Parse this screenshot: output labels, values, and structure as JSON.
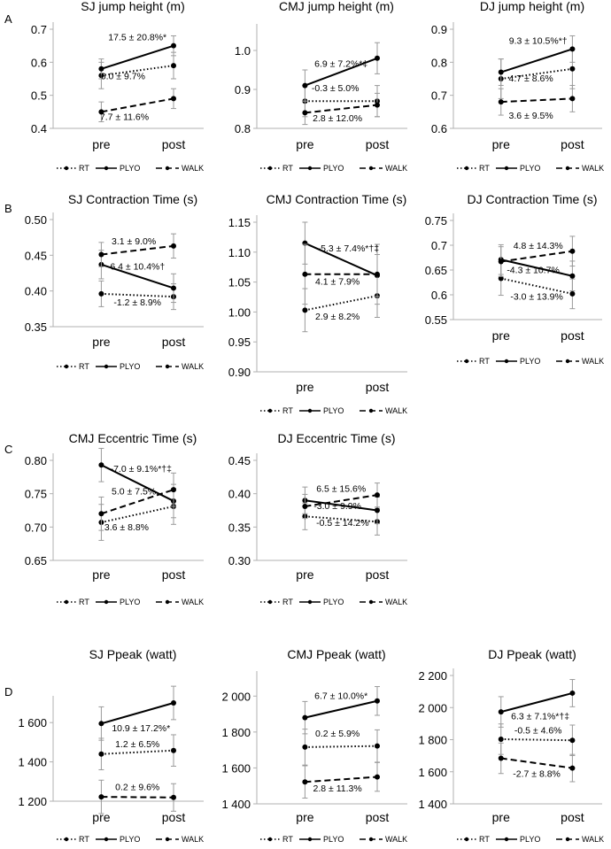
{
  "panel_labels": [
    "A",
    "B",
    "C",
    "D"
  ],
  "legend": [
    {
      "name": "RT",
      "style": "dotted"
    },
    {
      "name": "PLYO",
      "style": "solid"
    },
    {
      "name": "WALK",
      "style": "dashed"
    }
  ],
  "chart_data": [
    {
      "id": "sj-height",
      "type": "line",
      "title": "SJ jump height (m)",
      "categories": [
        "pre",
        "post"
      ],
      "ylim": [
        0.4,
        0.7
      ],
      "yticks": [
        0.4,
        0.5,
        0.6,
        0.7
      ],
      "tick_labels": [
        "0.4",
        "0.5",
        "0.6",
        "0.7"
      ],
      "series": [
        {
          "name": "RT",
          "values": [
            0.56,
            0.59
          ],
          "err": [
            0.04,
            0.04
          ]
        },
        {
          "name": "PLYO",
          "values": [
            0.58,
            0.65
          ],
          "err": [
            0.03,
            0.03
          ]
        },
        {
          "name": "WALK",
          "values": [
            0.45,
            0.49
          ],
          "err": [
            0.03,
            0.03
          ]
        }
      ],
      "annotations": [
        {
          "text": "17.5 ± 20.8%*",
          "x": 0.5,
          "y": 0.666,
          "anchor": "middle"
        },
        {
          "text": "6.0 ± 9.7%",
          "x": 0.3,
          "y": 0.549,
          "anchor": "middle"
        },
        {
          "text": "7.7 ± 11.6%",
          "x": 0.32,
          "y": 0.425,
          "anchor": "middle"
        }
      ]
    },
    {
      "id": "cmj-height",
      "type": "line",
      "title": "CMJ jump height (m)",
      "categories": [
        "pre",
        "post"
      ],
      "ylim": [
        0.8,
        1.05
      ],
      "yticks": [
        0.8,
        0.9,
        1.0
      ],
      "tick_labels": [
        "0.8",
        "0.9",
        "1.0"
      ],
      "series": [
        {
          "name": "RT",
          "values": [
            0.87,
            0.87
          ],
          "err": [
            0.04,
            0.04
          ]
        },
        {
          "name": "PLYO",
          "values": [
            0.91,
            0.98
          ],
          "err": [
            0.04,
            0.04
          ]
        },
        {
          "name": "WALK",
          "values": [
            0.84,
            0.86
          ],
          "err": [
            0.03,
            0.03
          ]
        }
      ],
      "annotations": [
        {
          "text": "6.9 ± 7.2%*‡",
          "x": 0.5,
          "y": 0.958,
          "anchor": "middle"
        },
        {
          "text": "-0.3 ± 5.0%",
          "x": 0.42,
          "y": 0.895,
          "anchor": "middle"
        },
        {
          "text": "2.8 ± 12.0%",
          "x": 0.45,
          "y": 0.818,
          "anchor": "middle"
        }
      ]
    },
    {
      "id": "dj-height",
      "type": "line",
      "title": "DJ jump height (m)",
      "categories": [
        "pre",
        "post"
      ],
      "ylim": [
        0.6,
        0.9
      ],
      "yticks": [
        0.6,
        0.7,
        0.8,
        0.9
      ],
      "tick_labels": [
        "0.6",
        "0.7",
        "0.8",
        "0.9"
      ],
      "series": [
        {
          "name": "RT",
          "values": [
            0.75,
            0.78
          ],
          "err": [
            0.06,
            0.06
          ]
        },
        {
          "name": "PLYO",
          "values": [
            0.77,
            0.84
          ],
          "err": [
            0.04,
            0.04
          ]
        },
        {
          "name": "WALK",
          "values": [
            0.68,
            0.69
          ],
          "err": [
            0.04,
            0.04
          ]
        }
      ],
      "annotations": [
        {
          "text": "9.3 ± 10.5%*†",
          "x": 0.52,
          "y": 0.856,
          "anchor": "middle"
        },
        {
          "text": "4.7 ± 8.6%",
          "x": 0.42,
          "y": 0.742,
          "anchor": "middle"
        },
        {
          "text": "3.6 ± 9.5%",
          "x": 0.42,
          "y": 0.63,
          "anchor": "middle"
        }
      ]
    },
    {
      "id": "sj-contraction",
      "type": "line",
      "title": "SJ Contraction Time (s)",
      "categories": [
        "pre",
        "post"
      ],
      "ylim": [
        0.35,
        0.5
      ],
      "yticks": [
        0.35,
        0.4,
        0.45,
        0.5
      ],
      "tick_labels": [
        "0.35",
        "0.40",
        "0.45",
        "0.50"
      ],
      "series": [
        {
          "name": "RT",
          "values": [
            0.396,
            0.392
          ],
          "err": [
            0.018,
            0.018
          ]
        },
        {
          "name": "PLYO",
          "values": [
            0.437,
            0.404
          ],
          "err": [
            0.02,
            0.02
          ]
        },
        {
          "name": "WALK",
          "values": [
            0.451,
            0.463
          ],
          "err": [
            0.017,
            0.017
          ]
        }
      ],
      "annotations": [
        {
          "text": "3.1 ± 9.0%",
          "x": 0.45,
          "y": 0.465,
          "anchor": "middle"
        },
        {
          "text": "-6.4 ± 10.4%†",
          "x": 0.48,
          "y": 0.43,
          "anchor": "middle"
        },
        {
          "text": "-1.2 ± 8.9%",
          "x": 0.5,
          "y": 0.38,
          "anchor": "middle"
        }
      ]
    },
    {
      "id": "cmj-contraction",
      "type": "line",
      "title": "CMJ Contraction Time (s)",
      "categories": [
        "pre",
        "post"
      ],
      "ylim": [
        0.9,
        1.15
      ],
      "yticks": [
        0.9,
        0.95,
        1.0,
        1.05,
        1.1,
        1.15
      ],
      "tick_labels": [
        "0.90",
        "0.95",
        "1.00",
        "1.05",
        "1.10",
        "1.15"
      ],
      "series": [
        {
          "name": "RT",
          "values": [
            1.003,
            1.027
          ],
          "err": [
            0.036,
            0.036
          ]
        },
        {
          "name": "PLYO",
          "values": [
            1.115,
            1.061
          ],
          "err": [
            0.035,
            0.035
          ]
        },
        {
          "name": "WALK",
          "values": [
            1.063,
            1.063
          ],
          "err": [
            0.05,
            0.05
          ]
        }
      ],
      "annotations": [
        {
          "text": "-5.3 ± 7.4%*†‡",
          "x": 0.6,
          "y": 1.101,
          "anchor": "middle"
        },
        {
          "text": "4.1 ± 7.9%",
          "x": 0.45,
          "y": 1.046,
          "anchor": "middle"
        },
        {
          "text": "2.9 ± 8.2%",
          "x": 0.45,
          "y": 0.987,
          "anchor": "middle"
        }
      ]
    },
    {
      "id": "dj-contraction",
      "type": "line",
      "title": "DJ Contraction Time (s)",
      "categories": [
        "pre",
        "post"
      ],
      "ylim": [
        0.55,
        0.75
      ],
      "yticks": [
        0.55,
        0.6,
        0.65,
        0.7,
        0.75
      ],
      "tick_labels": [
        "0.55",
        "0.6",
        "0.65",
        "0.7",
        "0.75"
      ],
      "series": [
        {
          "name": "RT",
          "values": [
            0.633,
            0.602
          ],
          "err": [
            0.034,
            0.03
          ]
        },
        {
          "name": "PLYO",
          "values": [
            0.671,
            0.638
          ],
          "err": [
            0.03,
            0.03
          ]
        },
        {
          "name": "WALK",
          "values": [
            0.667,
            0.688
          ],
          "err": [
            0.03,
            0.03
          ]
        }
      ],
      "annotations": [
        {
          "text": "4.8 ± 14.3%",
          "x": 0.52,
          "y": 0.693,
          "anchor": "middle"
        },
        {
          "text": "-4.3 ± 10.7%",
          "x": 0.45,
          "y": 0.644,
          "anchor": "middle"
        },
        {
          "text": "-3.0 ± 13.9%",
          "x": 0.5,
          "y": 0.59,
          "anchor": "middle"
        }
      ]
    },
    {
      "id": "cmj-eccentric",
      "type": "line",
      "title": "CMJ Eccentric Time (s)",
      "categories": [
        "pre",
        "post"
      ],
      "ylim": [
        0.65,
        0.8
      ],
      "yticks": [
        0.65,
        0.7,
        0.75,
        0.8
      ],
      "tick_labels": [
        "0.65",
        "0.70",
        "0.75",
        "0.80"
      ],
      "series": [
        {
          "name": "RT",
          "values": [
            0.707,
            0.731
          ],
          "err": [
            0.027,
            0.027
          ]
        },
        {
          "name": "PLYO",
          "values": [
            0.793,
            0.739
          ],
          "err": [
            0.025,
            0.025
          ]
        },
        {
          "name": "WALK",
          "values": [
            0.72,
            0.756
          ],
          "err": [
            0.025,
            0.025
          ]
        }
      ],
      "annotations": [
        {
          "text": "-7.0 ± 9.1%*†‡",
          "x": 0.55,
          "y": 0.783,
          "anchor": "middle"
        },
        {
          "text": "5.0 ± 7.5%",
          "x": 0.45,
          "y": 0.749,
          "anchor": "middle"
        },
        {
          "text": "3.6 ± 8.8%",
          "x": 0.35,
          "y": 0.695,
          "anchor": "middle"
        }
      ]
    },
    {
      "id": "dj-eccentric",
      "type": "line",
      "title": "DJ Eccentric Time (s)",
      "categories": [
        "pre",
        "post"
      ],
      "ylim": [
        0.3,
        0.45
      ],
      "yticks": [
        0.3,
        0.35,
        0.4,
        0.45
      ],
      "tick_labels": [
        "0.30",
        "0.35",
        "0.40",
        "0.45"
      ],
      "series": [
        {
          "name": "RT",
          "values": [
            0.366,
            0.358
          ],
          "err": [
            0.02,
            0.02
          ]
        },
        {
          "name": "PLYO",
          "values": [
            0.39,
            0.375
          ],
          "err": [
            0.02,
            0.02
          ]
        },
        {
          "name": "WALK",
          "values": [
            0.381,
            0.398
          ],
          "err": [
            0.018,
            0.018
          ]
        }
      ],
      "annotations": [
        {
          "text": "6.5 ± 15.6%",
          "x": 0.5,
          "y": 0.403,
          "anchor": "middle"
        },
        {
          "text": "-3.0 ± 9.9%",
          "x": 0.45,
          "y": 0.377,
          "anchor": "middle"
        },
        {
          "text": "-0.5 ± 14.2%",
          "x": 0.52,
          "y": 0.352,
          "anchor": "middle"
        }
      ]
    },
    {
      "id": "sj-ppeak",
      "type": "line",
      "title": "SJ Ppeak (watt)",
      "categories": [
        "pre",
        "post"
      ],
      "ylim": [
        1200,
        1700
      ],
      "yticks": [
        1200,
        1400,
        1600
      ],
      "tick_labels": [
        "1 200",
        "1 400",
        "1 600"
      ],
      "series": [
        {
          "name": "RT",
          "values": [
            1440,
            1458
          ],
          "err": [
            80,
            80
          ]
        },
        {
          "name": "PLYO",
          "values": [
            1595,
            1700
          ],
          "err": [
            85,
            85
          ]
        },
        {
          "name": "WALK",
          "values": [
            1222,
            1219
          ],
          "err": [
            85,
            70
          ]
        }
      ],
      "annotations": [
        {
          "text": "10.9 ± 17.2%*",
          "x": 0.55,
          "y": 1555,
          "anchor": "middle"
        },
        {
          "text": "1.2 ± 6.5%",
          "x": 0.5,
          "y": 1475,
          "anchor": "middle"
        },
        {
          "text": "0.2 ± 9.6%",
          "x": 0.5,
          "y": 1256,
          "anchor": "middle"
        }
      ]
    },
    {
      "id": "cmj-ppeak",
      "type": "line",
      "title": "CMJ Ppeak (watt)",
      "categories": [
        "pre",
        "post"
      ],
      "ylim": [
        1400,
        2100
      ],
      "yticks": [
        1400,
        1600,
        1800,
        2000
      ],
      "tick_labels": [
        "1 400",
        "1 600",
        "1 800",
        "2 000"
      ],
      "series": [
        {
          "name": "RT",
          "values": [
            1716,
            1722
          ],
          "err": [
            100,
            90
          ]
        },
        {
          "name": "PLYO",
          "values": [
            1880,
            1973
          ],
          "err": [
            90,
            80
          ]
        },
        {
          "name": "WALK",
          "values": [
            1522,
            1550
          ],
          "err": [
            90,
            80
          ]
        }
      ],
      "annotations": [
        {
          "text": "6.7 ± 10.0%*",
          "x": 0.5,
          "y": 1985,
          "anchor": "middle"
        },
        {
          "text": "0.2 ± 5.9%",
          "x": 0.45,
          "y": 1774,
          "anchor": "middle"
        },
        {
          "text": "2.8 ± 11.3%",
          "x": 0.45,
          "y": 1470,
          "anchor": "middle"
        }
      ]
    },
    {
      "id": "dj-ppeak",
      "type": "line",
      "title": "DJ Ppeak (watt)",
      "categories": [
        "pre",
        "post"
      ],
      "ylim": [
        1400,
        2200
      ],
      "yticks": [
        1400,
        1600,
        1800,
        2000,
        2200
      ],
      "tick_labels": [
        "1 400",
        "1 600",
        "1 800",
        "2 000",
        "2 200"
      ],
      "series": [
        {
          "name": "RT",
          "values": [
            1803,
            1796
          ],
          "err": [
            95,
            95
          ]
        },
        {
          "name": "PLYO",
          "values": [
            1973,
            2090
          ],
          "err": [
            95,
            85
          ]
        },
        {
          "name": "WALK",
          "values": [
            1684,
            1623
          ],
          "err": [
            95,
            85
          ]
        }
      ],
      "annotations": [
        {
          "text": "6.3 ± 7.1%*†‡",
          "x": 0.55,
          "y": 1928,
          "anchor": "middle"
        },
        {
          "text": "-0.5 ± 4.6%",
          "x": 0.52,
          "y": 1840,
          "anchor": "middle"
        },
        {
          "text": "-2.7 ± 8.8%",
          "x": 0.5,
          "y": 1568,
          "anchor": "middle"
        }
      ]
    }
  ]
}
